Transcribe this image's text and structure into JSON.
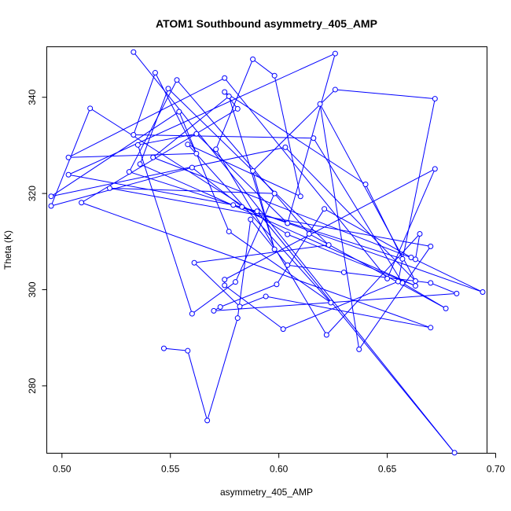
{
  "chart_data": {
    "type": "scatter",
    "title": "ATOM1 Southbound asymmetry_405_AMP",
    "xlabel": "asymmetry_405_AMP",
    "ylabel": "Theta (K)",
    "xlim": [
      0.493,
      0.696
    ],
    "ylim": [
      266,
      350.5
    ],
    "xticks": [
      0.5,
      0.55,
      0.6,
      0.65,
      0.7
    ],
    "xtick_labels": [
      "0.50",
      "0.55",
      "0.60",
      "0.65",
      "0.70"
    ],
    "yticks": [
      280,
      300,
      320,
      340
    ],
    "ytick_labels": [
      "280",
      "300",
      "320",
      "340"
    ],
    "grid": false,
    "legend": "none",
    "color": "#0000ff",
    "marker": "open-circle",
    "connected": true,
    "series": [
      {
        "x": [
          0.547,
          0.558,
          0.567,
          0.581,
          0.587,
          0.604,
          0.63,
          0.67,
          0.682,
          0.57,
          0.573,
          0.599,
          0.621,
          0.661,
          0.694,
          0.583,
          0.56,
          0.495,
          0.513,
          0.604,
          0.663,
          0.536,
          0.549,
          0.623,
          0.561,
          0.582,
          0.594,
          0.67,
          0.509,
          0.581,
          0.575,
          0.64,
          0.657,
          0.531,
          0.553,
          0.614,
          0.677,
          0.657,
          0.616,
          0.533,
          0.543,
          0.562,
          0.503,
          0.575,
          0.65,
          0.672,
          0.575,
          0.575,
          0.602,
          0.655,
          0.672,
          0.626,
          0.588,
          0.598,
          0.577,
          0.542,
          0.663,
          0.665,
          0.622,
          0.571,
          0.588,
          0.598,
          0.61,
          0.558,
          0.624,
          0.577,
          0.554,
          0.495,
          0.603,
          0.663,
          0.619,
          0.637,
          0.67,
          0.522,
          0.598,
          0.58,
          0.56,
          0.535,
          0.562,
          0.604,
          0.626,
          0.503,
          0.579,
          0.59,
          0.681,
          0.533
        ],
        "y": [
          287.8,
          287.3,
          272.8,
          294.1,
          314.6,
          305.1,
          303.6,
          301.4,
          299.2,
          295.6,
          296.4,
          301.1,
          316.8,
          306.7,
          299.5,
          317.2,
          325.4,
          317.4,
          337.7,
          311.5,
          300.8,
          326.1,
          341.8,
          309.3,
          305.6,
          296.5,
          298.6,
          292.1,
          318.1,
          337.6,
          341.1,
          321.9,
          306.4,
          324.5,
          343.6,
          311.6,
          296.1,
          301.4,
          331.5,
          332.2,
          345.1,
          328.3,
          327.5,
          344.0,
          302.3,
          325.1,
          302.1,
          300.9,
          291.8,
          301.7,
          339.7,
          341.6,
          324.7,
          308.4,
          340.2,
          327.5,
          306.3,
          311.6,
          290.6,
          329.2,
          347.9,
          344.5,
          319.4,
          330.2,
          297.3,
          312.1,
          337.0,
          319.4,
          329.6,
          301.8,
          338.6,
          287.6,
          309.0,
          321.1,
          320.0,
          301.6,
          295.0,
          330.1,
          332.4,
          313.8,
          349.1,
          323.9,
          317.6,
          316.3,
          266.1,
          349.4
        ]
      }
    ]
  }
}
